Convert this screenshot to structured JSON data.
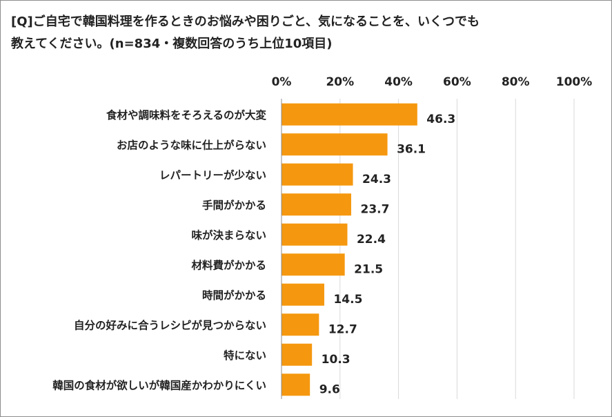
{
  "question_title": "[Q]ご自宅で韓国料理を作るときのお悩みや困りごと、気になることを、いくつでも教えてください。(n=834・複数回答のうち上位10項目)",
  "chart_data": {
    "type": "bar",
    "orientation": "horizontal",
    "title": "[Q]ご自宅で韓国料理を作るときのお悩みや困りごと、気になることを、いくつでも教えてください。(n=834・複数回答のうち上位10項目)",
    "categories": [
      "食材や調味料をそろえるのが大変",
      "お店のような味に仕上がらない",
      "レパートリーが少ない",
      "手間がかかる",
      "味が決まらない",
      "材料費がかかる",
      "時間がかかる",
      "自分の好みに合うレシピが見つからない",
      "特にない",
      "韓国の食材が欲しいが韓国産かわかりにくい"
    ],
    "values": [
      46.3,
      36.1,
      24.3,
      23.7,
      22.4,
      21.5,
      14.5,
      12.7,
      10.3,
      9.6
    ],
    "value_labels": [
      "46.3",
      "36.1",
      "24.3",
      "23.7",
      "22.4",
      "21.5",
      "14.5",
      "12.7",
      "10.3",
      "9.6"
    ],
    "xlim": [
      0,
      100
    ],
    "ticks": [
      0,
      20,
      40,
      60,
      80,
      100
    ],
    "tick_labels": [
      "0%",
      "20%",
      "40%",
      "60%",
      "80%",
      "100%"
    ],
    "axis_position": "top",
    "grid": true,
    "bar_color": "#F5980F",
    "grid_color": "#D9D9D9"
  }
}
